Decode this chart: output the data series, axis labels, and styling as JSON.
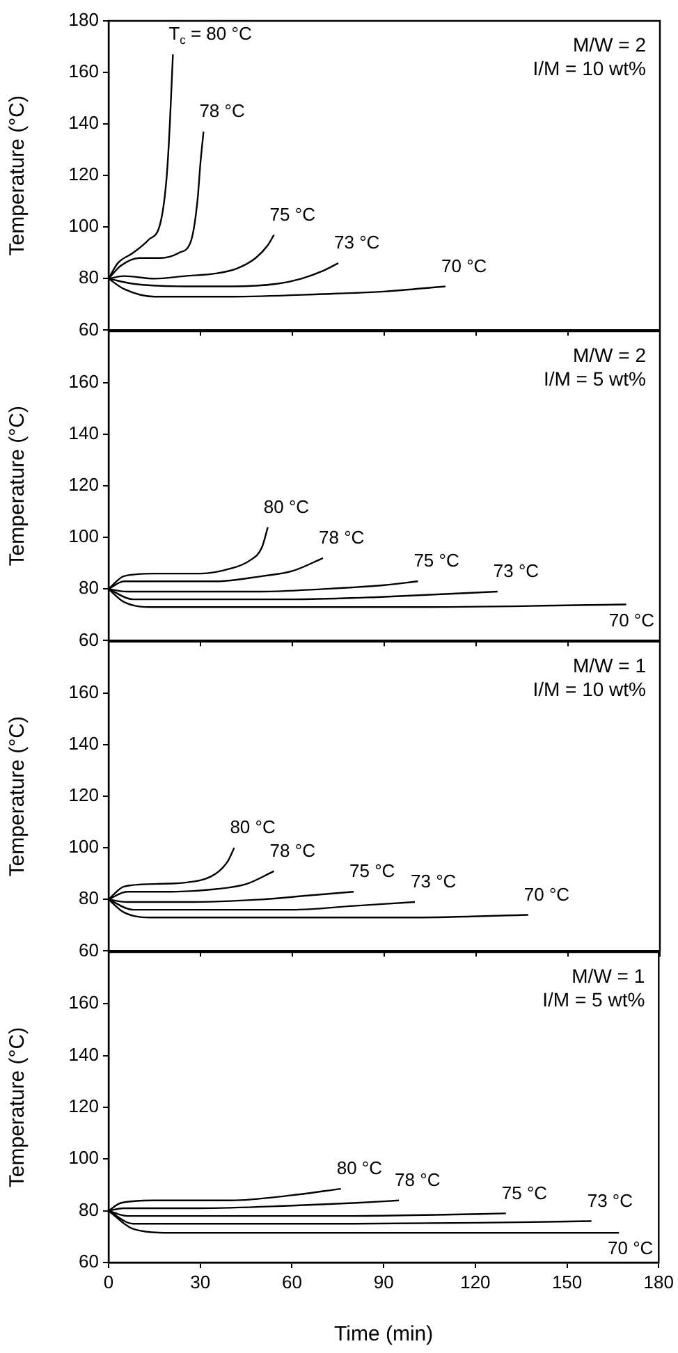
{
  "chart_data": [
    {
      "type": "line",
      "ylabel": "Temperature (°C)",
      "xlim": [
        0,
        180
      ],
      "ylim": [
        60,
        180
      ],
      "xticks": [
        0,
        30,
        60,
        90,
        120,
        150,
        180
      ],
      "yticks": [
        60,
        80,
        100,
        120,
        140,
        160,
        180
      ],
      "tick_labels": "y",
      "grid": false,
      "legend": false,
      "marker": "none",
      "line_style": "solid",
      "series": [
        {
          "name": "T$_{c}$ = 80 °C",
          "color": "#000000",
          "x": [
            0,
            3,
            8,
            13,
            17,
            19,
            20,
            21
          ],
          "values": [
            80,
            86,
            90,
            95,
            102,
            120,
            140,
            167
          ]
        },
        {
          "name": "78 °C",
          "color": "#000000",
          "x": [
            0,
            4,
            10,
            17,
            23,
            27,
            29,
            30,
            31
          ],
          "values": [
            80,
            85,
            88,
            88,
            90,
            95,
            110,
            125,
            137
          ]
        },
        {
          "name": "75 °C",
          "color": "#000000",
          "x": [
            0,
            5,
            15,
            25,
            35,
            42,
            48,
            52,
            54
          ],
          "values": [
            80,
            81,
            80,
            81,
            82,
            84,
            88,
            93,
            97
          ]
        },
        {
          "name": "73 °C",
          "color": "#000000",
          "x": [
            0,
            8,
            25,
            40,
            55,
            63,
            70,
            75
          ],
          "values": [
            80,
            78,
            77,
            77,
            78,
            80,
            83,
            86
          ]
        },
        {
          "name": "70 °C",
          "color": "#000000",
          "x": [
            0,
            5,
            15,
            40,
            70,
            90,
            110
          ],
          "values": [
            80,
            76,
            73,
            73,
            74,
            75,
            77
          ]
        }
      ],
      "annotations": [
        "M/W = 2",
        "I/M = 10 wt%"
      ]
    },
    {
      "type": "line",
      "ylabel": "Temperature (°C)",
      "xlim": [
        0,
        180
      ],
      "ylim": [
        60,
        180
      ],
      "xticks": [
        0,
        30,
        60,
        90,
        120,
        150,
        180
      ],
      "yticks": [
        60,
        80,
        100,
        120,
        140,
        160
      ],
      "tick_labels": "y",
      "grid": false,
      "legend": false,
      "marker": "none",
      "line_style": "solid",
      "series": [
        {
          "name": "80 °C",
          "color": "#000000",
          "x": [
            0,
            5,
            15,
            30,
            40,
            46,
            50,
            52
          ],
          "values": [
            80,
            85,
            86,
            86,
            88,
            91,
            96,
            104
          ]
        },
        {
          "name": "78 °C",
          "color": "#000000",
          "x": [
            0,
            5,
            20,
            35,
            50,
            60,
            70
          ],
          "values": [
            80,
            83,
            83,
            83,
            85,
            87,
            92
          ]
        },
        {
          "name": "75 °C",
          "color": "#000000",
          "x": [
            0,
            6,
            20,
            50,
            70,
            90,
            101
          ],
          "values": [
            80,
            79,
            79,
            79,
            80,
            81.5,
            83
          ]
        },
        {
          "name": "73 °C",
          "color": "#000000",
          "x": [
            0,
            8,
            30,
            60,
            90,
            127
          ],
          "values": [
            80,
            76,
            76,
            76,
            77,
            79
          ]
        },
        {
          "name": "70 °C",
          "color": "#000000",
          "x": [
            0,
            5,
            15,
            50,
            100,
            169
          ],
          "values": [
            80,
            75,
            73,
            73,
            73,
            74
          ]
        }
      ],
      "annotations": [
        "M/W = 2",
        "I/M = 5 wt%"
      ]
    },
    {
      "type": "line",
      "ylabel": "Temperature (°C)",
      "xlim": [
        0,
        180
      ],
      "ylim": [
        60,
        180
      ],
      "xticks": [
        0,
        30,
        60,
        90,
        120,
        150,
        180
      ],
      "yticks": [
        60,
        80,
        100,
        120,
        140,
        160
      ],
      "tick_labels": "y",
      "grid": false,
      "legend": false,
      "marker": "none",
      "line_style": "solid",
      "series": [
        {
          "name": "80 °C",
          "color": "#000000",
          "x": [
            0,
            5,
            15,
            28,
            35,
            39,
            41
          ],
          "values": [
            80,
            85,
            86,
            87,
            90,
            95,
            100
          ]
        },
        {
          "name": "78 °C",
          "color": "#000000",
          "x": [
            0,
            6,
            20,
            35,
            45,
            54
          ],
          "values": [
            80,
            83,
            83,
            84,
            86,
            91
          ]
        },
        {
          "name": "75 °C",
          "color": "#000000",
          "x": [
            0,
            6,
            25,
            50,
            65,
            80
          ],
          "values": [
            80,
            79,
            79,
            80,
            81.5,
            83
          ]
        },
        {
          "name": "73 °C",
          "color": "#000000",
          "x": [
            0,
            8,
            30,
            60,
            80,
            100
          ],
          "values": [
            80,
            76,
            76,
            76,
            77.5,
            79
          ]
        },
        {
          "name": "70 °C",
          "color": "#000000",
          "x": [
            0,
            5,
            15,
            50,
            100,
            137
          ],
          "values": [
            80,
            75,
            73,
            73,
            73,
            74
          ]
        }
      ],
      "annotations": [
        "M/W = 1",
        "I/M = 10 wt%"
      ]
    },
    {
      "type": "line",
      "xlabel": "Time (min)",
      "ylabel": "Temperature (°C)",
      "xlim": [
        0,
        180
      ],
      "ylim": [
        60,
        180
      ],
      "xticks": [
        0,
        30,
        60,
        90,
        120,
        150,
        180
      ],
      "yticks": [
        60,
        80,
        100,
        120,
        140,
        160
      ],
      "grid": false,
      "legend": false,
      "marker": "none",
      "line_style": "solid",
      "series": [
        {
          "name": "80 °C",
          "color": "#000000",
          "x": [
            0,
            4,
            15,
            40,
            60,
            76
          ],
          "values": [
            80,
            83,
            84,
            84,
            86,
            88.5
          ]
        },
        {
          "name": "78 °C",
          "color": "#000000",
          "x": [
            0,
            5,
            30,
            60,
            80,
            95
          ],
          "values": [
            80,
            81,
            81,
            82,
            83,
            84
          ]
        },
        {
          "name": "75 °C",
          "color": "#000000",
          "x": [
            0,
            6,
            40,
            80,
            110,
            130
          ],
          "values": [
            80,
            78,
            78,
            78,
            78.5,
            79
          ]
        },
        {
          "name": "73 °C",
          "color": "#000000",
          "x": [
            0,
            8,
            30,
            80,
            130,
            158
          ],
          "values": [
            80,
            75,
            75,
            75,
            75.5,
            76
          ]
        },
        {
          "name": "70 °C",
          "color": "#000000",
          "x": [
            0,
            8,
            20,
            80,
            167
          ],
          "values": [
            80,
            73,
            71.5,
            71.5,
            71.5
          ]
        }
      ],
      "annotations": [
        "M/W = 1",
        "I/M = 5 wt%"
      ]
    }
  ]
}
